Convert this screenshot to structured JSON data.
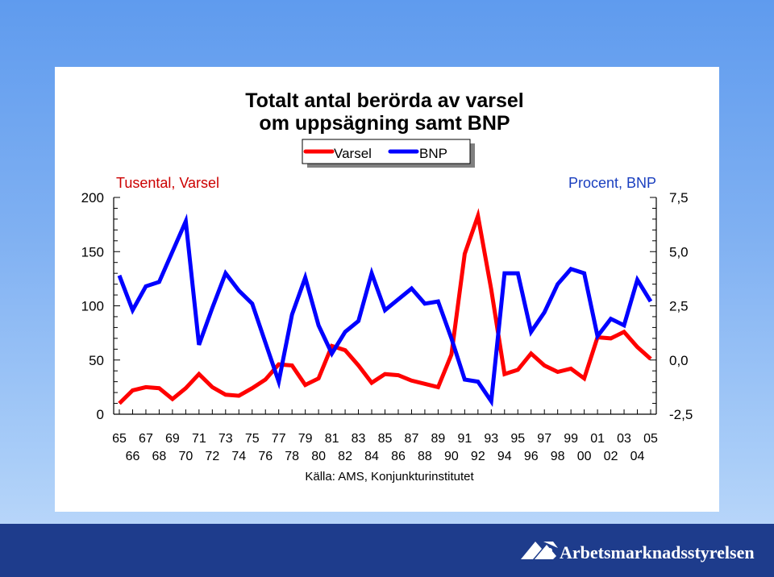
{
  "title_lines": [
    "Totalt antal berörda av varsel",
    "om uppsägning samt BNP"
  ],
  "left_axis_label": "Tusental, Varsel",
  "right_axis_label": "Procent, BNP",
  "left_ticks": [
    "0",
    "50",
    "100",
    "150",
    "200"
  ],
  "right_ticks": [
    "-2,5",
    "0,0",
    "2,5",
    "5,0",
    "7,5"
  ],
  "x_ticks_row1": [
    "65",
    "67",
    "69",
    "71",
    "73",
    "75",
    "77",
    "79",
    "81",
    "83",
    "85",
    "87",
    "89",
    "91",
    "93",
    "95",
    "97",
    "99",
    "01",
    "03",
    "05"
  ],
  "x_ticks_row2": [
    "66",
    "68",
    "70",
    "72",
    "74",
    "76",
    "78",
    "80",
    "82",
    "84",
    "86",
    "88",
    "90",
    "92",
    "94",
    "96",
    "98",
    "00",
    "02",
    "04"
  ],
  "legend": [
    {
      "label": "Varsel",
      "color": "#ff0000"
    },
    {
      "label": "BNP",
      "color": "#0000ff"
    }
  ],
  "source": "Källa: AMS, Konjunkturinstitutet",
  "logo_text": "Arbetsmarknadsstyrelsen",
  "chart_data": {
    "type": "line",
    "x": [
      1965,
      1966,
      1967,
      1968,
      1969,
      1970,
      1971,
      1972,
      1973,
      1974,
      1975,
      1976,
      1977,
      1978,
      1979,
      1980,
      1981,
      1982,
      1983,
      1984,
      1985,
      1986,
      1987,
      1988,
      1989,
      1990,
      1991,
      1992,
      1993,
      1994,
      1995,
      1996,
      1997,
      1998,
      1999,
      2000,
      2001,
      2002,
      2003,
      2004,
      2005
    ],
    "xlim": [
      1965,
      2005
    ],
    "series": [
      {
        "name": "Varsel",
        "axis": "left",
        "color": "#ff0000",
        "ylim": [
          0,
          200
        ],
        "values": [
          10,
          22,
          25,
          24,
          14,
          24,
          37,
          25,
          18,
          17,
          24,
          32,
          46,
          45,
          27,
          33,
          63,
          59,
          45,
          29,
          37,
          36,
          31,
          28,
          25,
          55,
          148,
          183,
          115,
          37,
          41,
          56,
          45,
          39,
          42,
          33,
          71,
          70,
          76,
          62,
          51
        ]
      },
      {
        "name": "BNP",
        "axis": "right",
        "color": "#0000ff",
        "ylim": [
          -2.5,
          7.5
        ],
        "values": [
          3.9,
          2.3,
          3.4,
          3.6,
          5.0,
          6.4,
          0.7,
          2.4,
          4.0,
          3.2,
          2.6,
          0.8,
          -1.0,
          2.1,
          3.8,
          1.6,
          0.3,
          1.3,
          1.8,
          4.0,
          2.3,
          2.8,
          3.3,
          2.6,
          2.7,
          1.0,
          -0.9,
          -1.0,
          -1.9,
          4.0,
          4.0,
          1.3,
          2.2,
          3.5,
          4.2,
          4.0,
          1.1,
          1.9,
          1.6,
          3.7,
          2.7
        ]
      }
    ]
  }
}
